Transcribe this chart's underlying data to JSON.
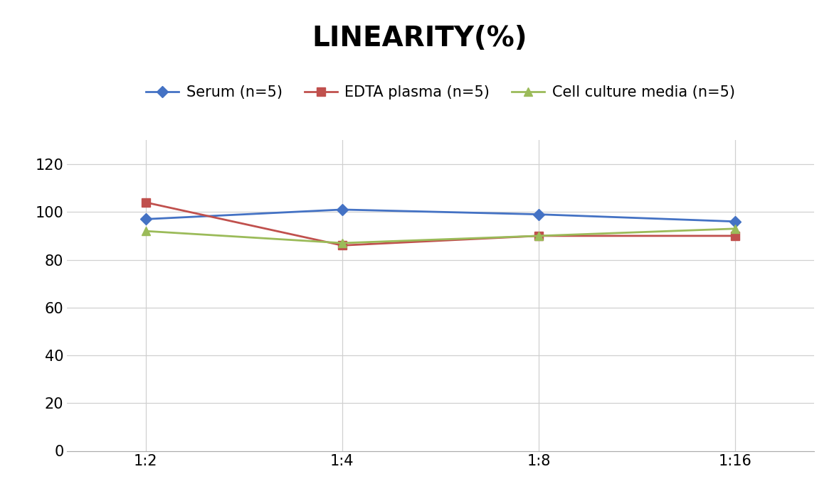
{
  "title": "LINEARITY(%)",
  "x_labels": [
    "1:2",
    "1:4",
    "1:8",
    "1:16"
  ],
  "x_positions": [
    0,
    1,
    2,
    3
  ],
  "series": [
    {
      "label": "Serum (n=5)",
      "values": [
        97,
        101,
        99,
        96
      ],
      "color": "#4472C4",
      "marker": "D",
      "linewidth": 2.0,
      "markersize": 8
    },
    {
      "label": "EDTA plasma (n=5)",
      "values": [
        104,
        86,
        90,
        90
      ],
      "color": "#C0504D",
      "marker": "s",
      "linewidth": 2.0,
      "markersize": 8
    },
    {
      "label": "Cell culture media (n=5)",
      "values": [
        92,
        87,
        90,
        93
      ],
      "color": "#9BBB59",
      "marker": "^",
      "linewidth": 2.0,
      "markersize": 8
    }
  ],
  "ylim": [
    0,
    130
  ],
  "yticks": [
    0,
    20,
    40,
    60,
    80,
    100,
    120
  ],
  "background_color": "#FFFFFF",
  "grid_color": "#D0D0D0",
  "title_fontsize": 28,
  "tick_fontsize": 15,
  "legend_fontsize": 15
}
